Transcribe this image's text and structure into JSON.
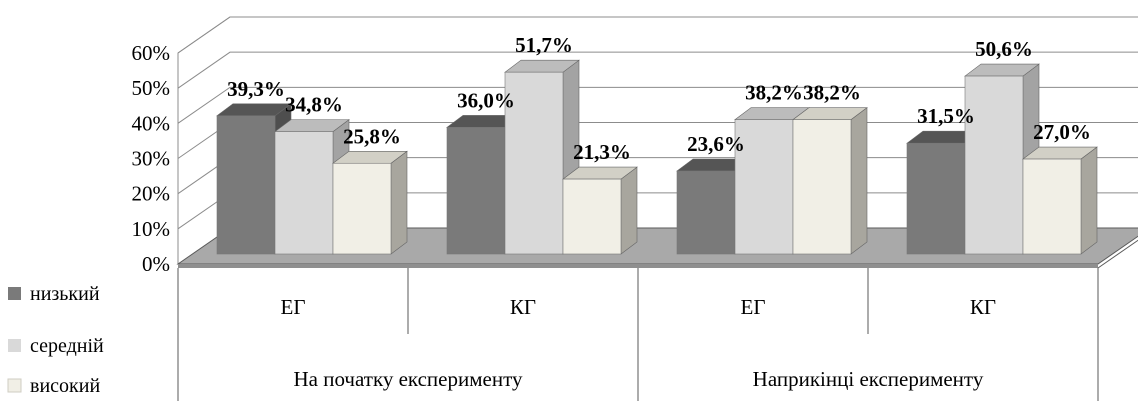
{
  "chart_data": {
    "type": "bar",
    "title": "",
    "xlabel": "",
    "ylabel": "",
    "ylim": [
      0,
      60
    ],
    "y_ticks": [
      "0%",
      "10%",
      "20%",
      "30%",
      "40%",
      "50%",
      "60%"
    ],
    "groups": [
      "На початку експерименту",
      "Наприкінці експерименту"
    ],
    "categories": [
      "ЕГ",
      "КГ",
      "ЕГ",
      "КГ"
    ],
    "series": [
      {
        "name": "низький",
        "values": [
          39.3,
          36.0,
          23.6,
          31.5
        ],
        "labels": [
          "39,3%",
          "36,0%",
          "23,6%",
          "31,5%"
        ]
      },
      {
        "name": "середній",
        "values": [
          34.8,
          51.7,
          38.2,
          50.6
        ],
        "labels": [
          "34,8%",
          "51,7%",
          "38,2%",
          "50,6%"
        ]
      },
      {
        "name": "високий",
        "values": [
          25.8,
          21.3,
          38.2,
          27.0
        ],
        "labels": [
          "25,8%",
          "21,3%",
          "38,2%",
          "27,0%"
        ]
      }
    ],
    "legend": "left",
    "grid": true,
    "style": "3d-clustered-columns",
    "colors": {
      "series_front": [
        "#7a7a7a",
        "#d9d9d9",
        "#f1efe6"
      ],
      "series_top": [
        "#555555",
        "#bcbcbc",
        "#d2d0c6"
      ],
      "series_side": [
        "#4e4e4e",
        "#a3a3a3",
        "#a8a69e"
      ],
      "floor": "#a9a9a9",
      "grid": "#8c8c8c",
      "axis": "#5a5a5a"
    }
  }
}
